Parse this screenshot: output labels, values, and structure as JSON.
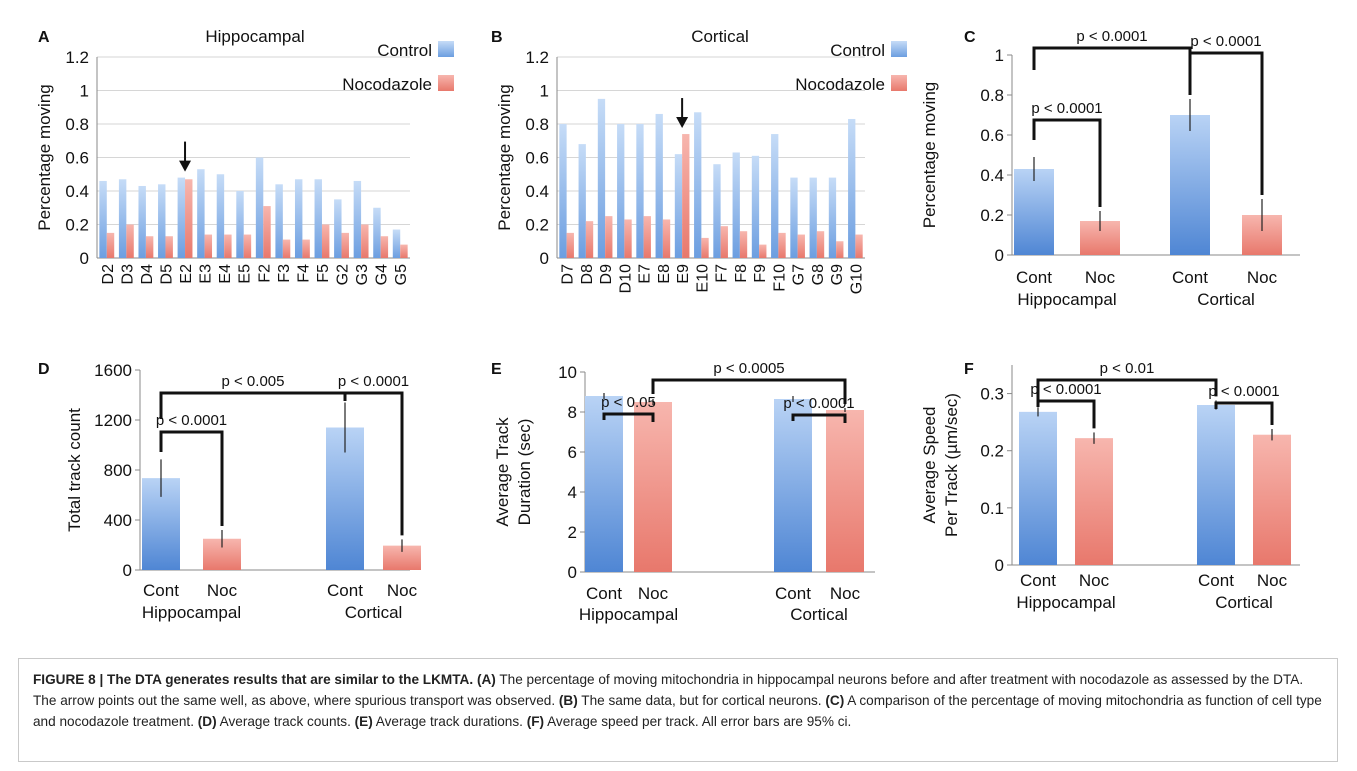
{
  "colors": {
    "control": "#5b8fd9",
    "control_light": "#b9d3f5",
    "nocodazole": "#e98074",
    "nocodazole_light": "#f6b3ab"
  },
  "chart_data": [
    {
      "id": "A",
      "type": "bar",
      "panel_label": "A",
      "title": "Hippocampal",
      "ylabel": "Percentage moving",
      "xlabel": "",
      "ylim": [
        0,
        1.2
      ],
      "yticks": [
        "0",
        "0.2",
        "0.4",
        "0.6",
        "0.8",
        "1",
        "1.2"
      ],
      "ytick_values": [
        0,
        0.2,
        0.4,
        0.6,
        0.8,
        1,
        1.2
      ],
      "grid": true,
      "legend": "top-right",
      "categories": [
        "D2",
        "D3",
        "D4",
        "D5",
        "E2",
        "E3",
        "E4",
        "E5",
        "F2",
        "F3",
        "F4",
        "F5",
        "G2",
        "G3",
        "G4",
        "G5"
      ],
      "series": [
        {
          "name": "Control",
          "values": [
            0.46,
            0.47,
            0.43,
            0.44,
            0.48,
            0.53,
            0.5,
            0.4,
            0.6,
            0.44,
            0.47,
            0.47,
            0.35,
            0.46,
            0.3,
            0.17
          ]
        },
        {
          "name": "Nocodazole",
          "values": [
            0.15,
            0.2,
            0.13,
            0.13,
            0.47,
            0.14,
            0.14,
            0.14,
            0.31,
            0.11,
            0.11,
            0.2,
            0.15,
            0.2,
            0.13,
            0.08
          ]
        }
      ],
      "arrow_category": "E2"
    },
    {
      "id": "B",
      "type": "bar",
      "panel_label": "B",
      "title": "Cortical",
      "ylabel": "Percentage moving",
      "xlabel": "",
      "ylim": [
        0,
        1.2
      ],
      "yticks": [
        "0",
        "0.2",
        "0.4",
        "0.6",
        "0.8",
        "1",
        "1.2"
      ],
      "ytick_values": [
        0,
        0.2,
        0.4,
        0.6,
        0.8,
        1,
        1.2
      ],
      "grid": true,
      "legend": "top-right",
      "categories": [
        "D7",
        "D8",
        "D9",
        "D10",
        "E7",
        "E8",
        "E9",
        "E10",
        "F7",
        "F8",
        "F9",
        "F10",
        "G7",
        "G8",
        "G9",
        "G10"
      ],
      "series": [
        {
          "name": "Control",
          "values": [
            0.8,
            0.68,
            0.95,
            0.8,
            0.8,
            0.86,
            0.62,
            0.87,
            0.56,
            0.63,
            0.61,
            0.74,
            0.48,
            0.48,
            0.48,
            0.83
          ]
        },
        {
          "name": "Nocodazole",
          "values": [
            0.15,
            0.22,
            0.25,
            0.23,
            0.25,
            0.23,
            0.74,
            0.12,
            0.19,
            0.16,
            0.08,
            0.15,
            0.14,
            0.16,
            0.1,
            0.14
          ]
        }
      ],
      "arrow_category": "E9"
    },
    {
      "id": "C",
      "type": "bar",
      "panel_label": "C",
      "ylabel": "Percentage moving",
      "ylim": [
        0,
        1
      ],
      "yticks": [
        "0",
        "0.2",
        "0.4",
        "0.6",
        "0.8",
        "1"
      ],
      "ytick_values": [
        0,
        0.2,
        0.4,
        0.6,
        0.8,
        1
      ],
      "categories": [
        "Cont",
        "Noc",
        "Cont",
        "Noc"
      ],
      "groups": [
        "Hippocampal",
        "Cortical"
      ],
      "values": [
        0.43,
        0.17,
        0.7,
        0.2
      ],
      "errors": [
        0.06,
        0.05,
        0.08,
        0.08
      ],
      "comparisons": [
        {
          "from": 0,
          "to": 2,
          "label": "p < 0.0001"
        },
        {
          "from": 0,
          "to": 1,
          "label": "p < 0.0001"
        },
        {
          "from": 2,
          "to": 3,
          "label": "p < 0.0001"
        }
      ]
    },
    {
      "id": "D",
      "type": "bar",
      "panel_label": "D",
      "ylabel": "Total track count",
      "ylim": [
        0,
        1600
      ],
      "yticks": [
        "0",
        "400",
        "800",
        "1200",
        "1600"
      ],
      "ytick_values": [
        0,
        400,
        800,
        1200,
        1600
      ],
      "categories": [
        "Cont",
        "Noc",
        "Cont",
        "Noc"
      ],
      "groups": [
        "Hippocampal",
        "Cortical"
      ],
      "values": [
        735,
        250,
        1140,
        195
      ],
      "errors": [
        150,
        70,
        200,
        50
      ],
      "comparisons": [
        {
          "from": 0,
          "to": 2,
          "label": "p < 0.005"
        },
        {
          "from": 0,
          "to": 1,
          "label": "p < 0.0001"
        },
        {
          "from": 2,
          "to": 3,
          "label": "p < 0.0001"
        }
      ]
    },
    {
      "id": "E",
      "type": "bar",
      "panel_label": "E",
      "ylabel_lines": [
        "Average Track",
        "Duration (sec)"
      ],
      "ylim": [
        0,
        10
      ],
      "yticks": [
        "0",
        "2",
        "4",
        "6",
        "8",
        "10"
      ],
      "ytick_values": [
        0,
        2,
        4,
        6,
        8,
        10
      ],
      "categories": [
        "Cont",
        "Noc",
        "Cont",
        "Noc"
      ],
      "groups": [
        "Hippocampal",
        "Cortical"
      ],
      "values": [
        8.8,
        8.5,
        8.65,
        8.1
      ],
      "errors": [
        0.15,
        0.15,
        0.15,
        0.1
      ],
      "comparisons": [
        {
          "from": 1,
          "to": 3,
          "label": "p < 0.0005"
        },
        {
          "from": 0,
          "to": 1,
          "label": "p < 0.05"
        },
        {
          "from": 2,
          "to": 3,
          "label": "p < 0.0001"
        }
      ]
    },
    {
      "id": "F",
      "type": "bar",
      "panel_label": "F",
      "ylabel_lines": [
        "Average Speed",
        "Per Track  (µm/sec)"
      ],
      "ylim": [
        0,
        0.35
      ],
      "yticks": [
        "0",
        "0.1",
        "0.2",
        "0.3"
      ],
      "ytick_values": [
        0,
        0.1,
        0.2,
        0.3
      ],
      "categories": [
        "Cont",
        "Noc",
        "Cont",
        "Noc"
      ],
      "groups": [
        "Hippocampal",
        "Cortical"
      ],
      "values": [
        0.268,
        0.222,
        0.28,
        0.228
      ],
      "errors": [
        0.008,
        0.01,
        0.008,
        0.01
      ],
      "comparisons": [
        {
          "from": 0,
          "to": 2,
          "label": "p < 0.01"
        },
        {
          "from": 0,
          "to": 1,
          "label": "p < 0.0001"
        },
        {
          "from": 2,
          "to": 3,
          "label": "p < 0.0001"
        }
      ]
    }
  ],
  "caption": [
    {
      "text": "FIGURE 8 | The DTA generates results that are similar to the LKMTA.",
      "bold": true
    },
    {
      "text": " ",
      "bold": false
    },
    {
      "text": "(A)",
      "bold": true
    },
    {
      "text": " The percentage of moving mitochondria in hippocampal neurons before and after treatment with nocodazole as assessed by the DTA. The arrow points out the same well, as above, where spurious transport was observed. ",
      "bold": false
    },
    {
      "text": "(B)",
      "bold": true
    },
    {
      "text": " The same data, but for cortical neurons. ",
      "bold": false
    },
    {
      "text": "(C)",
      "bold": true
    },
    {
      "text": " A comparison of the percentage of moving mitochondria as function of cell type and nocodazole treatment. ",
      "bold": false
    },
    {
      "text": "(D)",
      "bold": true
    },
    {
      "text": " Average track counts. ",
      "bold": false
    },
    {
      "text": "(E)",
      "bold": true
    },
    {
      "text": " Average track durations. ",
      "bold": false
    },
    {
      "text": "(F)",
      "bold": true
    },
    {
      "text": " Average speed per track. All error bars are 95% ci.",
      "bold": false
    }
  ]
}
